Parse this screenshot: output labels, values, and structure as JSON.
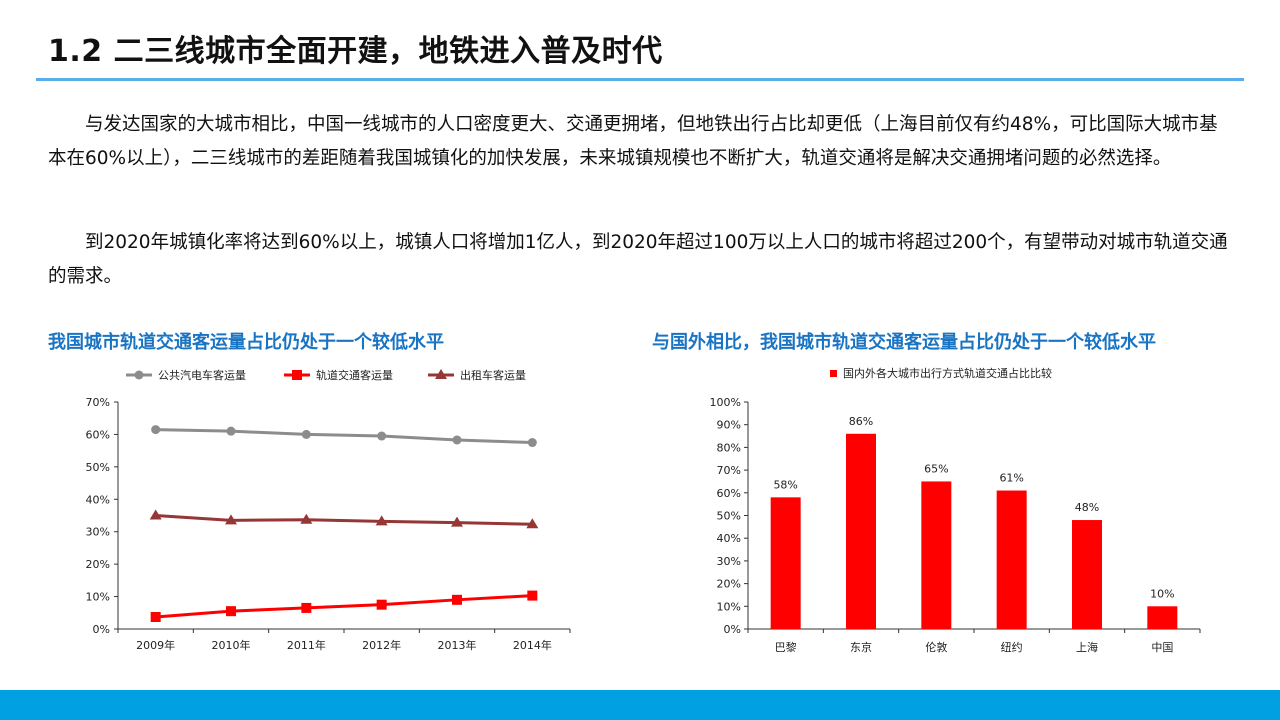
{
  "title": "1.2 二三线城市全面开建，地铁进入普及时代",
  "paragraphs": [
    "与发达国家的大城市相比，中国一线城市的人口密度更大、交通更拥堵，但地铁出行占比却更低（上海目前仅有约48%，可比国际大城市基本在60%以上），二三线城市的差距随着我国城镇化的加快发展，未来城镇规模也不断扩大，轨道交通将是解决交通拥堵问题的必然选择。",
    "到2020年城镇化率将达到60%以上，城镇人口将增加1亿人，到2020年超过100万以上人口的城市将超过200个，有望带动对城市轨道交通的需求。"
  ],
  "captions": {
    "left": "我国城市轨道交通客运量占比仍处于一个较低水平",
    "right": "与国外相比，我国城市轨道交通客运量占比仍处于一个较低水平"
  },
  "chart_data": [
    {
      "type": "line",
      "categories": [
        "2009年",
        "2010年",
        "2011年",
        "2012年",
        "2013年",
        "2014年"
      ],
      "series": [
        {
          "name": "公共汽电车客运量",
          "color": "#8c8c8c",
          "marker": "circle",
          "values": [
            61.5,
            61,
            60,
            59.5,
            58.3,
            57.5
          ]
        },
        {
          "name": "轨道交通客运量",
          "color": "#ff0000",
          "marker": "square",
          "values": [
            3.7,
            5.5,
            6.5,
            7.5,
            9,
            10.3
          ]
        },
        {
          "name": "出租车客运量",
          "color": "#953735",
          "marker": "triangle",
          "values": [
            35,
            33.5,
            33.7,
            33.2,
            32.8,
            32.3
          ]
        }
      ],
      "yticks": [
        "0%",
        "10%",
        "20%",
        "30%",
        "40%",
        "50%",
        "60%",
        "70%"
      ],
      "ylim": [
        0,
        70
      ],
      "legend_position": "top"
    },
    {
      "type": "bar",
      "title": "国内外各大城市出行方式轨道交通占比比较",
      "legend": "国内外各大城市出行方式轨道交通占比比较",
      "color": "#ff0000",
      "categories": [
        "巴黎",
        "东京",
        "伦敦",
        "纽约",
        "上海",
        "中国"
      ],
      "values": [
        58,
        86,
        65,
        61,
        48,
        10
      ],
      "data_labels": [
        "58%",
        "86%",
        "65%",
        "61%",
        "48%",
        "10%"
      ],
      "yticks": [
        "0%",
        "10%",
        "20%",
        "30%",
        "40%",
        "50%",
        "60%",
        "70%",
        "80%",
        "90%",
        "100%"
      ],
      "ylim": [
        0,
        100
      ]
    }
  ]
}
